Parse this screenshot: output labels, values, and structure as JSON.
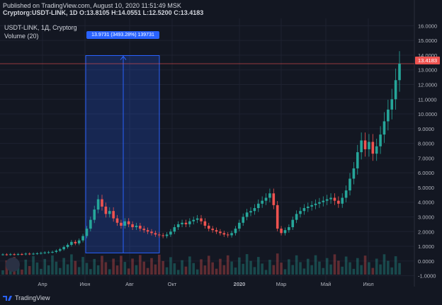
{
  "header": {
    "published": "Published on TradingView.com, August 10, 2020 11:51:49 MSK",
    "symbol": "Cryptorg:USDT-LINK, 1D",
    "o_label": "O:",
    "o": "13.8105",
    "h_label": "H:",
    "h": "14.0551",
    "l_label": "L:",
    "l": "12.5200",
    "c_label": "C:",
    "c": "13.4183"
  },
  "legend": {
    "series": "USDT-LINK, 1Д, Cryptorg",
    "volume": "Volume (20)"
  },
  "measure": {
    "label": "13.9731 (3493.28%) 139731"
  },
  "last_price_tag": "13.4183",
  "footer": {
    "brand": "TradingView"
  },
  "colors": {
    "background": "#131722",
    "up": "#26a69a",
    "down": "#ef5350",
    "measure": "#2962ff",
    "grid": "#1f2433"
  },
  "chart_data": {
    "type": "candlestick",
    "symbol": "USDT-LINK",
    "y_ticks": [
      "16.0000",
      "15.0000",
      "14.0000",
      "13.0000",
      "12.0000",
      "11.0000",
      "10.0000",
      "9.0000",
      "8.0000",
      "7.0000",
      "6.0000",
      "5.0000",
      "4.0000",
      "3.0000",
      "2.0000",
      "1.0000",
      "0.0000",
      "-1.0000"
    ],
    "ylim": [
      -1.5,
      16.5
    ],
    "x_ticks": [
      "Апр",
      "Июн",
      "Авг",
      "Окт",
      "2020",
      "Мар",
      "Май",
      "Июл"
    ],
    "last_price": 13.4183,
    "close_series": [
      0.45,
      0.44,
      0.46,
      0.45,
      0.47,
      0.46,
      0.5,
      0.48,
      0.5,
      0.52,
      0.55,
      0.58,
      0.6,
      0.62,
      0.7,
      0.8,
      0.95,
      1.1,
      1.3,
      1.2,
      1.4,
      1.7,
      2.2,
      2.8,
      3.5,
      4.2,
      3.7,
      3.2,
      3.4,
      2.9,
      2.6,
      2.4,
      2.7,
      2.5,
      2.3,
      2.4,
      2.2,
      2.1,
      2.0,
      1.9,
      1.8,
      1.75,
      1.7,
      1.8,
      2.0,
      2.3,
      2.5,
      2.6,
      2.5,
      2.7,
      2.8,
      2.9,
      2.7,
      2.4,
      2.2,
      2.1,
      2.0,
      1.9,
      1.8,
      1.75,
      1.9,
      2.2,
      2.6,
      3.0,
      3.3,
      3.4,
      3.6,
      3.9,
      4.1,
      4.3,
      4.6,
      3.8,
      2.2,
      1.9,
      2.1,
      2.3,
      2.8,
      3.2,
      3.4,
      3.6,
      3.7,
      3.8,
      3.9,
      4.0,
      4.1,
      4.2,
      4.3,
      4.1,
      3.9,
      4.3,
      4.8,
      5.6,
      6.3,
      7.4,
      8.2,
      7.6,
      8.1,
      7.3,
      7.8,
      8.6,
      9.5,
      10.3,
      11.0,
      12.3,
      13.4183
    ],
    "measure_from": 0.55,
    "measure_to": 13.9731
  }
}
